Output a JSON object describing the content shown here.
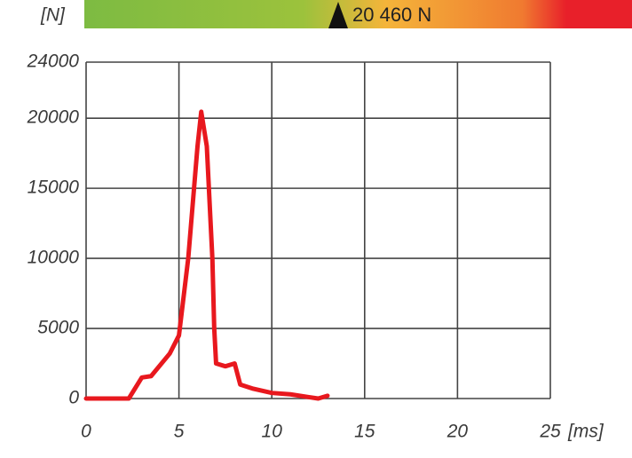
{
  "chart_data": {
    "type": "line",
    "x_label": "[ms]",
    "y_label": "[N]",
    "annotation": "20 460 N",
    "x": [
      0,
      2,
      2.3,
      3,
      3.5,
      4.5,
      5,
      5.5,
      6,
      6.2,
      6.5,
      6.8,
      6.9,
      7,
      7.5,
      8,
      8.3,
      9,
      10,
      11,
      12,
      12.5,
      13
    ],
    "series": [
      {
        "color": "#e8181e",
        "values": [
          0,
          0,
          0,
          1500,
          1600,
          3200,
          4500,
          10000,
          18000,
          20460,
          18000,
          10000,
          5000,
          2500,
          2300,
          2500,
          1000,
          700,
          400,
          300,
          100,
          0,
          200
        ]
      }
    ],
    "xlim": [
      0,
      25
    ],
    "ylim": [
      0,
      24000
    ],
    "xticks": [
      0,
      5,
      10,
      15,
      20,
      25
    ],
    "yticks": [
      0,
      5000,
      10000,
      15000,
      20000,
      24000
    ],
    "grid": true
  }
}
